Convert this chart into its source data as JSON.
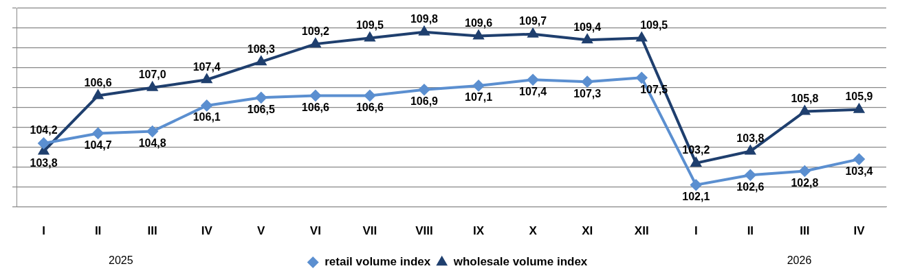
{
  "chart_data": {
    "type": "line",
    "categories": [
      "I",
      "II",
      "III",
      "IV",
      "V",
      "VI",
      "VII",
      "VIII",
      "IX",
      "X",
      "XI",
      "XII",
      "I",
      "II",
      "III",
      "IV"
    ],
    "series": [
      {
        "name": "retail volume index",
        "color": "#5b8fd0",
        "marker": "diamond",
        "values": [
          104.2,
          104.7,
          104.8,
          106.1,
          106.5,
          106.6,
          106.6,
          106.9,
          107.1,
          107.4,
          107.3,
          107.5,
          102.1,
          102.6,
          102.8,
          103.4
        ],
        "value_labels": [
          "104,2",
          "104,7",
          "104,8",
          "106,1",
          "106,5",
          "106,6",
          "106,6",
          "106,9",
          "107,1",
          "107,4",
          "107,3",
          "107,5",
          "102,1",
          "102,6",
          "102,8",
          "103,4"
        ]
      },
      {
        "name": "wholesale volume index",
        "color": "#1f3f6e",
        "marker": "triangle",
        "values": [
          103.8,
          106.6,
          107.0,
          107.4,
          108.3,
          109.2,
          109.5,
          109.8,
          109.6,
          109.7,
          109.4,
          109.5,
          103.2,
          103.8,
          105.8,
          105.9
        ],
        "value_labels": [
          "103,8",
          "106,6",
          "107,0",
          "107,4",
          "108,3",
          "109,2",
          "109,5",
          "109,8",
          "109,6",
          "109,7",
          "109,4",
          "109,5",
          "103,2",
          "103,8",
          "105,8",
          "105,9"
        ]
      }
    ],
    "tick_labels": "x",
    "grid": "y",
    "legend": "bottom",
    "annotations": [
      "2025",
      "2026"
    ]
  }
}
